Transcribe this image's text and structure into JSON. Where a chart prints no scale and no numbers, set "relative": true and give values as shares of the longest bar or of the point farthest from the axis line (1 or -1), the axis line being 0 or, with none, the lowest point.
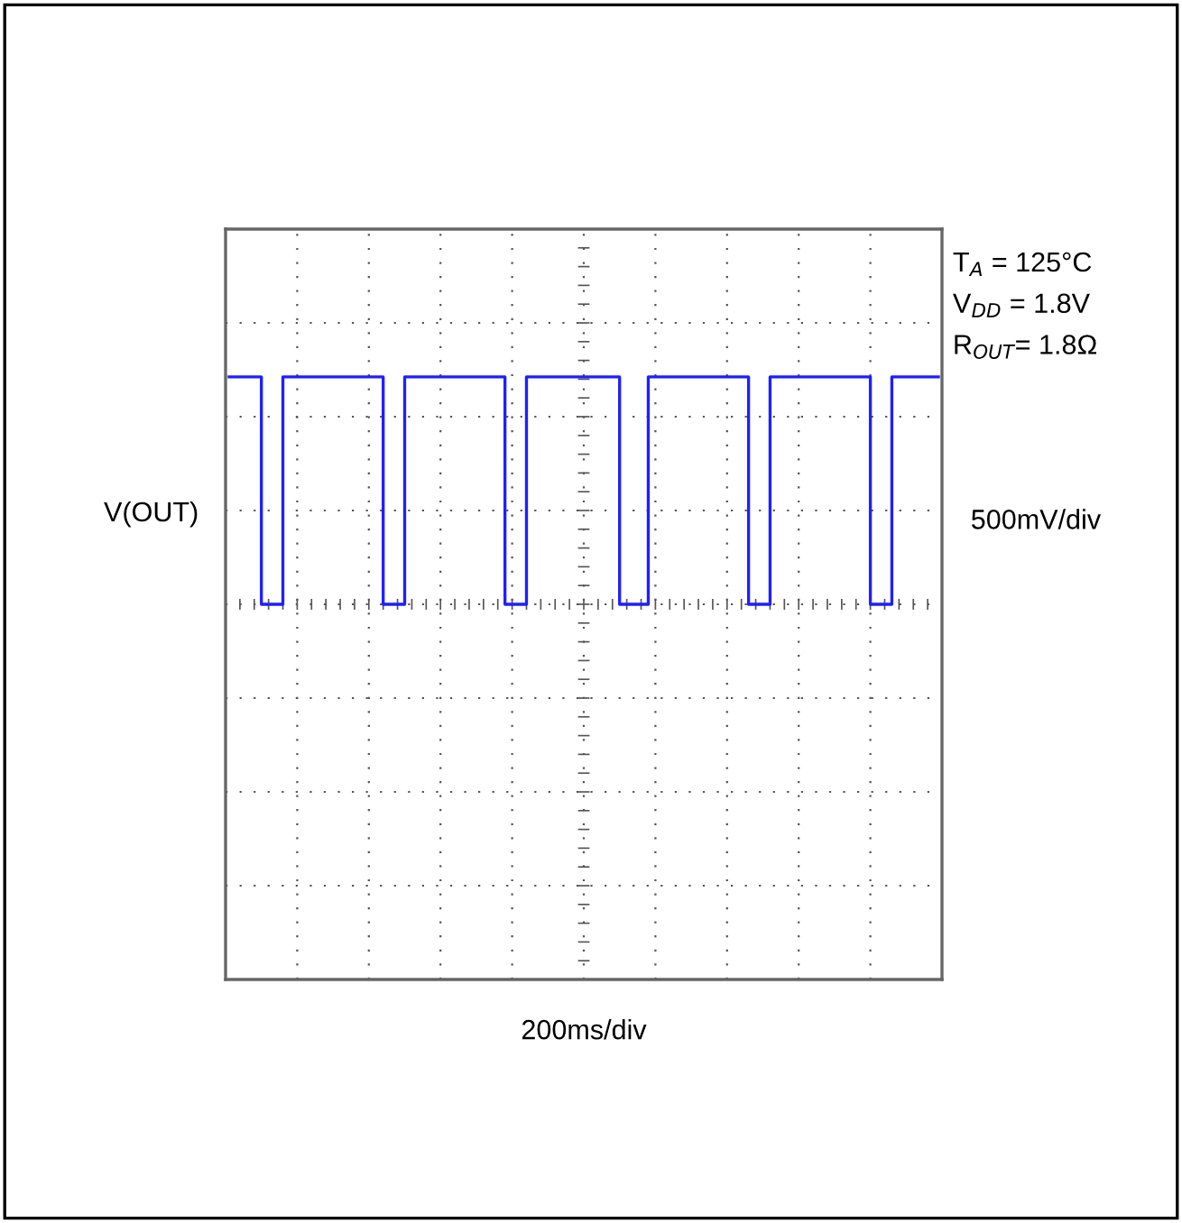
{
  "chart_data": {
    "type": "step",
    "relative": true,
    "ylabel": "V(OUT)",
    "annotations": [
      "T$_{A}$ = 125°C",
      "V$_{DD}$ = 1.8V",
      "R$_{OUT}$= 1.8Ω",
      "500mV/div",
      "200ms/div"
    ],
    "grid": true,
    "categories": [
      null,
      null,
      null,
      null,
      null,
      null,
      null,
      null,
      null,
      null,
      null,
      null,
      null,
      null,
      null,
      null,
      null,
      null,
      null,
      null,
      null,
      null,
      null,
      null,
      null,
      null,
      null,
      null,
      null,
      null,
      null,
      null,
      null,
      null,
      null,
      null,
      null,
      null,
      null,
      null,
      null,
      null,
      null,
      null,
      null,
      null,
      null,
      null,
      null,
      null,
      null,
      null,
      null,
      null,
      null,
      null,
      null,
      null,
      null,
      null,
      null,
      null,
      null,
      null,
      null,
      null,
      null,
      null,
      null,
      null,
      null,
      null,
      null,
      null,
      null,
      null,
      null,
      null,
      null,
      null,
      null,
      null,
      null,
      null,
      null,
      null,
      null,
      null,
      null,
      null,
      null,
      null,
      null,
      null,
      null,
      null,
      null,
      null,
      null,
      null
    ],
    "series": [
      {
        "color": "#1f1fff",
        "values": [
          1,
          1,
          1,
          1,
          1,
          0,
          0,
          0,
          1,
          1,
          1,
          1,
          1,
          1,
          1,
          1,
          1,
          1,
          1,
          1,
          1,
          1,
          0,
          0,
          0,
          1,
          1,
          1,
          1,
          1,
          1,
          1,
          1,
          1,
          1,
          1,
          1,
          1,
          1,
          0,
          0,
          0,
          1,
          1,
          1,
          1,
          1,
          1,
          1,
          1,
          1,
          1,
          1,
          1,
          1,
          0,
          0,
          0,
          0,
          1,
          1,
          1,
          1,
          1,
          1,
          1,
          1,
          1,
          1,
          1,
          1,
          1,
          1,
          0,
          0,
          0,
          1,
          1,
          1,
          1,
          1,
          1,
          1,
          1,
          1,
          1,
          1,
          1,
          1,
          1,
          0,
          0,
          0,
          1,
          1,
          1,
          1,
          1,
          1,
          1
        ]
      }
    ]
  }
}
